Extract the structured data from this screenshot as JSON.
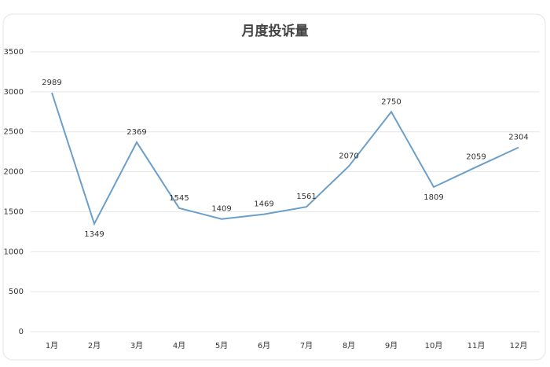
{
  "chart_data": {
    "type": "line",
    "title": "月度投诉量",
    "categories": [
      "1月",
      "2月",
      "3月",
      "4月",
      "5月",
      "6月",
      "7月",
      "8月",
      "9月",
      "10月",
      "11月",
      "12月"
    ],
    "values": [
      2989,
      1349,
      2369,
      1545,
      1409,
      1469,
      1561,
      2070,
      2750,
      1809,
      2059,
      2304
    ],
    "color": "#6b9fca",
    "ylim": [
      0,
      3500
    ],
    "yticks": [
      0,
      500,
      1000,
      1500,
      2000,
      2500,
      3000,
      3500
    ],
    "grid": true
  }
}
